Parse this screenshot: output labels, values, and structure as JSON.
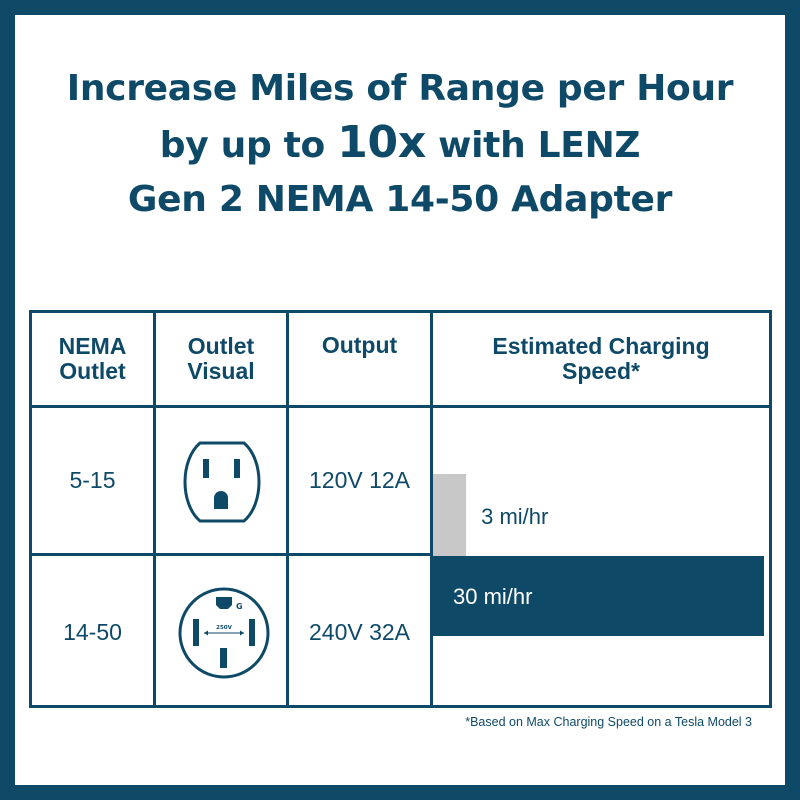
{
  "headline": {
    "line1": "Increase Miles of Range per Hour",
    "line2_pre": "by up to ",
    "line2_big": "10x",
    "line2_post": " with LENZ",
    "line3": "Gen 2 NEMA 14-50 Adapter"
  },
  "table": {
    "headers": {
      "nema_outlet": "NEMA\nOutlet",
      "outlet_visual": "Outlet\nVisual",
      "output": "Output",
      "speed": "Estimated Charging\nSpeed*"
    },
    "rows": [
      {
        "outlet": "5-15",
        "output": "120V 12A",
        "speed_label": "3 mi/hr",
        "icon": "nema-5-15-outlet-icon"
      },
      {
        "outlet": "14-50",
        "output": "240V 32A",
        "speed_label": "30 mi/hr",
        "icon": "nema-14-50-outlet-icon",
        "icon_text_g": "G",
        "icon_text_v": "250V"
      }
    ]
  },
  "chart_data": {
    "type": "bar",
    "orientation": "horizontal",
    "categories": [
      "5-15",
      "14-50"
    ],
    "values": [
      3,
      30
    ],
    "unit": "mi/hr",
    "colors": [
      "#c8c8c8",
      "#0e4a68"
    ]
  },
  "footnote": "*Based on Max Charging Speed on a Tesla Model 3",
  "colors": {
    "brand": "#0e4a68",
    "bar_small": "#c8c8c8",
    "background": "#ffffff"
  }
}
